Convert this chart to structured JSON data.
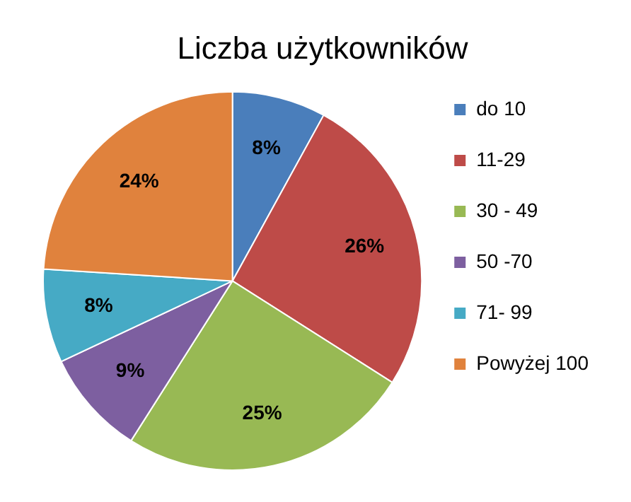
{
  "chart_data": {
    "type": "pie",
    "title": "Liczba użytkowników",
    "categories": [
      "do 10",
      "11-29",
      "30 - 49",
      "50 -70",
      "71- 99",
      "Powyżej 100"
    ],
    "values": [
      8,
      26,
      25,
      9,
      8,
      24
    ],
    "colors": [
      "#4a7ebb",
      "#be4b48",
      "#98b954",
      "#7d5fa0",
      "#46aac5",
      "#e0823d"
    ],
    "value_labels": [
      "8%",
      "26%",
      "25%",
      "9%",
      "8%",
      "24%"
    ],
    "legend": "right"
  }
}
